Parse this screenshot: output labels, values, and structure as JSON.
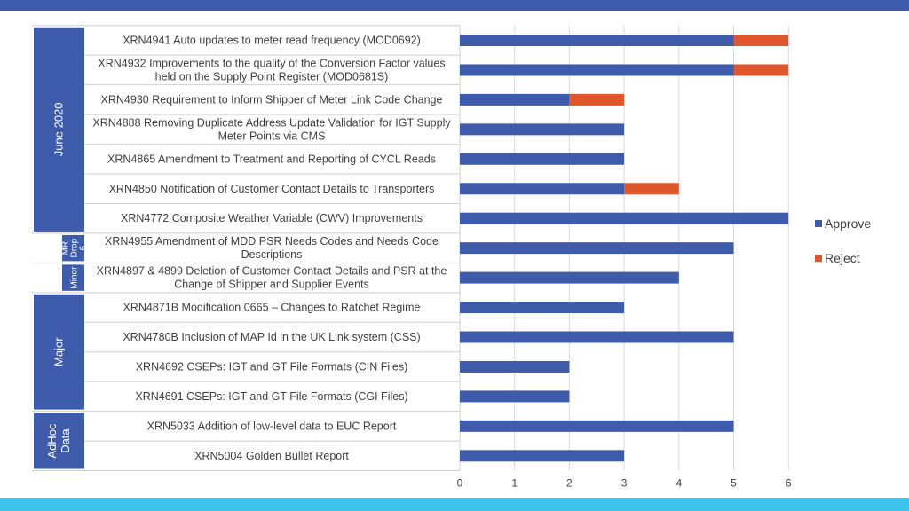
{
  "colors": {
    "approve": "#3f5bab",
    "reject": "#e0572d",
    "group_box": "#3f5bab",
    "top_bar": "#3f5bab",
    "bottom_bar": "#3cc4ec",
    "grid": "#d9d9d9"
  },
  "chart_data": {
    "type": "bar",
    "orientation": "horizontal",
    "stacked": true,
    "title": "",
    "xlabel": "",
    "ylabel": "",
    "xlim": [
      0,
      6
    ],
    "x_ticks": [
      "0",
      "1",
      "2",
      "3",
      "4",
      "5",
      "6"
    ],
    "grid": true,
    "legend_position": "right",
    "categories": [
      [
        "XRN4941 Auto updates to meter read frequency (MOD0692)"
      ],
      [
        "XRN4932 Improvements to the quality of the Conversion Factor values",
        "held on the Supply Point Register (MOD0681S)"
      ],
      [
        "XRN4930 Requirement to Inform Shipper of Meter Link Code Change"
      ],
      [
        "XRN4888 Removing Duplicate Address Update Validation for IGT Supply",
        "Meter Points via CMS"
      ],
      [
        "XRN4865 Amendment to Treatment and Reporting  of CYCL Reads"
      ],
      [
        "XRN4850 Notification of Customer Contact Details to Transporters"
      ],
      [
        "XRN4772 Composite Weather Variable (CWV) Improvements"
      ],
      [
        "XRN4955 Amendment of MDD PSR Needs Codes and Needs Code",
        "Descriptions"
      ],
      [
        "XRN4897 & 4899 Deletion of Customer Contact Details and PSR at the",
        "Change of Shipper and Supplier Events"
      ],
      [
        "XRN4871B Modification 0665 – Changes to Ratchet Regime"
      ],
      [
        "XRN4780B Inclusion of MAP Id in the UK Link system (CSS)"
      ],
      [
        "XRN4692 CSEPs: IGT and GT File Formats (CIN Files)"
      ],
      [
        "XRN4691 CSEPs: IGT and GT File Formats (CGI Files)"
      ],
      [
        "XRN5033 Addition of low-level data to EUC Report"
      ],
      [
        "XRN5004 Golden Bullet Report"
      ]
    ],
    "series": [
      {
        "name": "Approve",
        "values": [
          5,
          5,
          2,
          3,
          3,
          3,
          6,
          5,
          4,
          3,
          5,
          2,
          2,
          5,
          3
        ]
      },
      {
        "name": "Reject",
        "values": [
          1,
          1,
          1,
          0,
          0,
          1,
          0,
          0,
          0,
          0,
          0,
          0,
          0,
          0,
          0
        ]
      }
    ],
    "groups": [
      {
        "label": [
          "June 2020"
        ],
        "start": 0,
        "end": 6,
        "size": "large"
      },
      {
        "label": [
          "MR",
          "Drop",
          "6"
        ],
        "start": 7,
        "end": 7,
        "size": "small"
      },
      {
        "label": [
          "Minor"
        ],
        "start": 8,
        "end": 8,
        "size": "small"
      },
      {
        "label": [
          "Major"
        ],
        "start": 9,
        "end": 12,
        "size": "large"
      },
      {
        "label": [
          "AdHoc",
          "Data"
        ],
        "start": 13,
        "end": 14,
        "size": "large"
      }
    ]
  }
}
